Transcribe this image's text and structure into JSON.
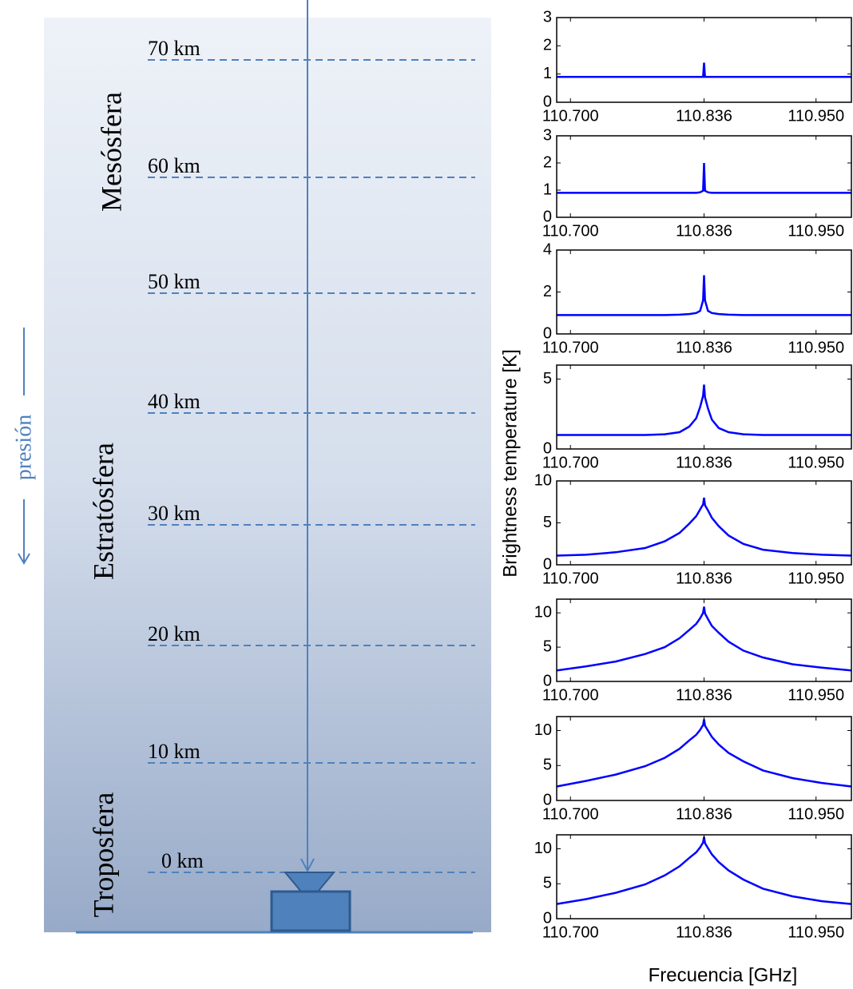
{
  "diagram": {
    "altitude_labels": [
      "70 km",
      "60 km",
      "50 km",
      "40 km",
      "30 km",
      "20 km",
      "10 km",
      "0 km"
    ],
    "layers": [
      "Mesósfera",
      "Estratósfera",
      "Troposfera"
    ],
    "pressure_label": "presión"
  },
  "figure": {
    "ylabel": "Brightness temperature [K]",
    "xlabel": "Frecuencia [GHz]"
  },
  "chart_data": [
    {
      "type": "line",
      "x": [
        110.686,
        110.716,
        110.746,
        110.776,
        110.796,
        110.811,
        110.821,
        110.828,
        110.832,
        110.835,
        110.836,
        110.837,
        110.84,
        110.844,
        110.851,
        110.861,
        110.876,
        110.896,
        110.926,
        110.956,
        110.986
      ],
      "series": [
        {
          "color": "#0000ff",
          "values": [
            0.9,
            0.9,
            0.9,
            0.9,
            0.9,
            0.9,
            0.9,
            0.9,
            0.9,
            0.9,
            1.4,
            0.9,
            0.9,
            0.9,
            0.9,
            0.9,
            0.9,
            0.9,
            0.9,
            0.9,
            0.9
          ]
        }
      ],
      "xlim": [
        110.686,
        110.986
      ],
      "xticks": [
        {
          "value": 110.7,
          "label": "110.700"
        },
        110.836,
        {
          "value": 110.95,
          "label": "110.950"
        }
      ],
      "ylim": [
        0,
        3
      ],
      "yticks": [
        0,
        1,
        2,
        3
      ]
    },
    {
      "type": "line",
      "x": [
        110.686,
        110.716,
        110.746,
        110.776,
        110.796,
        110.811,
        110.821,
        110.828,
        110.832,
        110.835,
        110.836,
        110.837,
        110.84,
        110.844,
        110.851,
        110.861,
        110.876,
        110.896,
        110.926,
        110.956,
        110.986
      ],
      "series": [
        {
          "color": "#0000ff",
          "values": [
            0.9,
            0.9,
            0.9,
            0.9,
            0.9,
            0.9,
            0.9,
            0.9,
            0.92,
            0.98,
            2.0,
            0.98,
            0.92,
            0.9,
            0.9,
            0.9,
            0.9,
            0.9,
            0.9,
            0.9,
            0.9
          ]
        }
      ],
      "xlim": [
        110.686,
        110.986
      ],
      "xticks": [
        {
          "value": 110.7,
          "label": "110.700"
        },
        110.836,
        {
          "value": 110.95,
          "label": "110.950"
        }
      ],
      "ylim": [
        0,
        3
      ],
      "yticks": [
        0,
        1,
        2,
        3
      ]
    },
    {
      "type": "line",
      "x": [
        110.686,
        110.716,
        110.746,
        110.776,
        110.796,
        110.811,
        110.821,
        110.828,
        110.832,
        110.835,
        110.836,
        110.837,
        110.84,
        110.844,
        110.851,
        110.861,
        110.876,
        110.896,
        110.926,
        110.956,
        110.986
      ],
      "series": [
        {
          "color": "#0000ff",
          "values": [
            0.9,
            0.9,
            0.9,
            0.9,
            0.9,
            0.92,
            0.95,
            1.0,
            1.1,
            1.6,
            2.8,
            1.6,
            1.1,
            1.0,
            0.95,
            0.92,
            0.9,
            0.9,
            0.9,
            0.9,
            0.9
          ]
        }
      ],
      "xlim": [
        110.686,
        110.986
      ],
      "xticks": [
        {
          "value": 110.7,
          "label": "110.700"
        },
        110.836,
        {
          "value": 110.95,
          "label": "110.950"
        }
      ],
      "ylim": [
        0,
        4
      ],
      "yticks": [
        0,
        2,
        4
      ]
    },
    {
      "type": "line",
      "x": [
        110.686,
        110.716,
        110.746,
        110.776,
        110.796,
        110.811,
        110.821,
        110.828,
        110.832,
        110.835,
        110.836,
        110.837,
        110.84,
        110.844,
        110.851,
        110.861,
        110.876,
        110.896,
        110.926,
        110.956,
        110.986
      ],
      "series": [
        {
          "color": "#0000ff",
          "values": [
            1.0,
            1.0,
            1.0,
            1.0,
            1.05,
            1.2,
            1.6,
            2.2,
            3.0,
            3.8,
            4.6,
            3.7,
            2.9,
            2.1,
            1.5,
            1.2,
            1.05,
            1.0,
            1.0,
            1.0,
            1.0
          ]
        }
      ],
      "xlim": [
        110.686,
        110.986
      ],
      "xticks": [
        {
          "value": 110.7,
          "label": "110.700"
        },
        110.836,
        {
          "value": 110.95,
          "label": "110.950"
        }
      ],
      "ylim": [
        0,
        6
      ],
      "yticks": [
        0,
        5
      ]
    },
    {
      "type": "line",
      "x": [
        110.686,
        110.716,
        110.746,
        110.776,
        110.796,
        110.811,
        110.821,
        110.828,
        110.832,
        110.835,
        110.836,
        110.837,
        110.84,
        110.844,
        110.851,
        110.861,
        110.876,
        110.896,
        110.926,
        110.956,
        110.986
      ],
      "series": [
        {
          "color": "#0000ff",
          "values": [
            1.1,
            1.2,
            1.5,
            2.0,
            2.8,
            3.8,
            4.9,
            5.8,
            6.6,
            7.2,
            8.0,
            7.1,
            6.5,
            5.6,
            4.6,
            3.5,
            2.5,
            1.8,
            1.4,
            1.2,
            1.1
          ]
        }
      ],
      "xlim": [
        110.686,
        110.986
      ],
      "xticks": [
        {
          "value": 110.7,
          "label": "110.700"
        },
        110.836,
        {
          "value": 110.95,
          "label": "110.950"
        }
      ],
      "ylim": [
        0,
        10
      ],
      "yticks": [
        0,
        5,
        10
      ]
    },
    {
      "type": "line",
      "x": [
        110.686,
        110.716,
        110.746,
        110.776,
        110.796,
        110.811,
        110.821,
        110.828,
        110.832,
        110.835,
        110.836,
        110.837,
        110.84,
        110.844,
        110.851,
        110.861,
        110.876,
        110.896,
        110.926,
        110.956,
        110.986
      ],
      "series": [
        {
          "color": "#0000ff",
          "values": [
            1.6,
            2.2,
            2.9,
            4.0,
            5.0,
            6.3,
            7.5,
            8.4,
            9.2,
            10.0,
            10.9,
            9.9,
            9.1,
            8.1,
            7.1,
            5.8,
            4.5,
            3.5,
            2.5,
            2.0,
            1.6
          ]
        }
      ],
      "xlim": [
        110.686,
        110.986
      ],
      "xticks": [
        {
          "value": 110.7,
          "label": "110.700"
        },
        110.836,
        {
          "value": 110.95,
          "label": "110.950"
        }
      ],
      "ylim": [
        0,
        12
      ],
      "yticks": [
        0,
        5,
        10
      ]
    },
    {
      "type": "line",
      "x": [
        110.686,
        110.716,
        110.746,
        110.776,
        110.796,
        110.811,
        110.821,
        110.828,
        110.832,
        110.835,
        110.836,
        110.837,
        110.84,
        110.844,
        110.851,
        110.861,
        110.876,
        110.896,
        110.926,
        110.956,
        110.986
      ],
      "series": [
        {
          "color": "#0000ff",
          "values": [
            2.0,
            2.8,
            3.7,
            4.9,
            6.1,
            7.4,
            8.6,
            9.4,
            10.1,
            10.8,
            11.6,
            10.7,
            10.0,
            9.1,
            8.0,
            6.8,
            5.6,
            4.3,
            3.2,
            2.5,
            2.0
          ]
        }
      ],
      "xlim": [
        110.686,
        110.986
      ],
      "xticks": [
        {
          "value": 110.7,
          "label": "110.700"
        },
        110.836,
        {
          "value": 110.95,
          "label": "110.950"
        }
      ],
      "ylim": [
        0,
        12
      ],
      "yticks": [
        0,
        5,
        10
      ]
    },
    {
      "type": "line",
      "x": [
        110.686,
        110.716,
        110.746,
        110.776,
        110.796,
        110.811,
        110.821,
        110.828,
        110.832,
        110.835,
        110.836,
        110.837,
        110.84,
        110.844,
        110.851,
        110.861,
        110.876,
        110.896,
        110.926,
        110.956,
        110.986
      ],
      "series": [
        {
          "color": "#0000ff",
          "values": [
            2.1,
            2.8,
            3.7,
            4.9,
            6.2,
            7.5,
            8.7,
            9.5,
            10.2,
            10.9,
            11.7,
            10.8,
            10.1,
            9.2,
            8.1,
            6.9,
            5.6,
            4.3,
            3.2,
            2.5,
            2.1
          ]
        }
      ],
      "xlim": [
        110.686,
        110.986
      ],
      "xticks": [
        {
          "value": 110.7,
          "label": "110.700"
        },
        110.836,
        {
          "value": 110.95,
          "label": "110.950"
        }
      ],
      "ylim": [
        0,
        12
      ],
      "yticks": [
        0,
        5,
        10
      ]
    }
  ]
}
